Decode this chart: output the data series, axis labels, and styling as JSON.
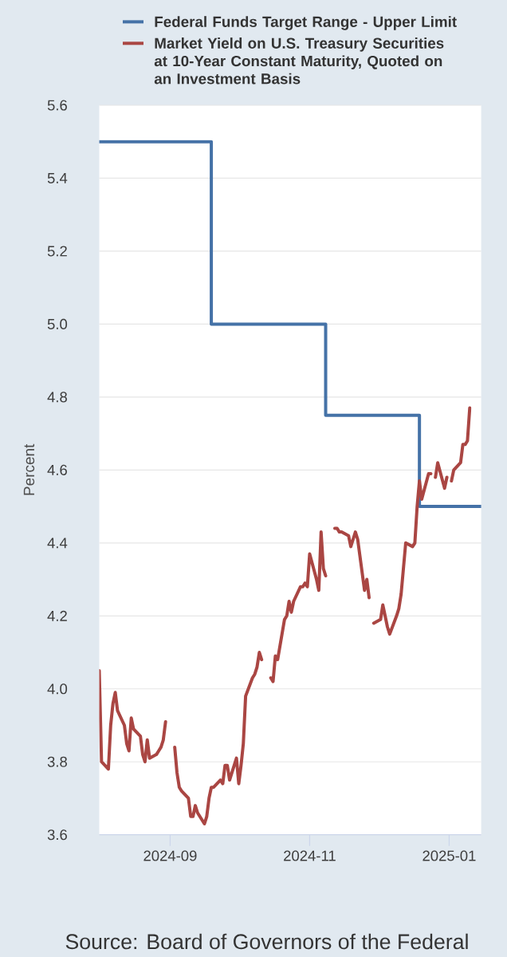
{
  "chart_data": {
    "type": "line",
    "ylabel": "Percent",
    "annotations": [
      "Source: Board of Governors of the Federal"
    ],
    "xlim": [
      "2024-08-01",
      "2025-01-15"
    ],
    "xticks": [
      "2024-09",
      "2024-11",
      "2025-01"
    ],
    "ylim": [
      3.6,
      5.6
    ],
    "yticks": [
      3.6,
      3.8,
      {
        "value": 4,
        "label": "4.0"
      },
      4.2,
      4.4,
      4.6,
      4.8,
      {
        "value": 5,
        "label": "5.0"
      },
      5.2,
      5.4,
      5.6
    ],
    "grid": "y",
    "legend": "top",
    "series": [
      {
        "name": "Federal Funds Target Range - Upper Limit",
        "type": "step",
        "color": "#4572a7",
        "x": [
          "2024-08-01",
          "2024-09-19",
          "2024-11-08",
          "2024-12-19",
          "2025-01-15"
        ],
        "values": [
          5.5,
          5.0,
          4.75,
          4.5,
          4.5
        ]
      },
      {
        "name": "Market Yield on U.S. Treasury Securities at 10-Year Constant Maturity, Quoted on an Investment Basis",
        "color": "#aa4643",
        "x": [
          "2024-08-01",
          "2024-08-02",
          "2024-08-05",
          "2024-08-06",
          "2024-08-07",
          "2024-08-08",
          "2024-08-09",
          "2024-08-12",
          "2024-08-13",
          "2024-08-14",
          "2024-08-15",
          "2024-08-16",
          "2024-08-19",
          "2024-08-20",
          "2024-08-21",
          "2024-08-22",
          "2024-08-23",
          "2024-08-26",
          "2024-08-27",
          "2024-08-28",
          "2024-08-29",
          "2024-08-30",
          "2024-09-02",
          "2024-09-03",
          "2024-09-04",
          "2024-09-05",
          "2024-09-06",
          "2024-09-09",
          "2024-09-10",
          "2024-09-11",
          "2024-09-12",
          "2024-09-13",
          "2024-09-16",
          "2024-09-17",
          "2024-09-18",
          "2024-09-19",
          "2024-09-20",
          "2024-09-23",
          "2024-09-24",
          "2024-09-25",
          "2024-09-26",
          "2024-09-27",
          "2024-09-30",
          "2024-10-01",
          "2024-10-02",
          "2024-10-03",
          "2024-10-04",
          "2024-10-07",
          "2024-10-08",
          "2024-10-09",
          "2024-10-10",
          "2024-10-11",
          "2024-10-14",
          "2024-10-15",
          "2024-10-16",
          "2024-10-17",
          "2024-10-18",
          "2024-10-21",
          "2024-10-22",
          "2024-10-23",
          "2024-10-24",
          "2024-10-25",
          "2024-10-28",
          "2024-10-29",
          "2024-10-30",
          "2024-10-31",
          "2024-11-01",
          "2024-11-04",
          "2024-11-05",
          "2024-11-06",
          "2024-11-07",
          "2024-11-08",
          "2024-11-11",
          "2024-11-12",
          "2024-11-13",
          "2024-11-14",
          "2024-11-15",
          "2024-11-18",
          "2024-11-19",
          "2024-11-20",
          "2024-11-21",
          "2024-11-22",
          "2024-11-25",
          "2024-11-26",
          "2024-11-27",
          "2024-11-28",
          "2024-11-29",
          "2024-12-02",
          "2024-12-03",
          "2024-12-04",
          "2024-12-05",
          "2024-12-06",
          "2024-12-09",
          "2024-12-10",
          "2024-12-11",
          "2024-12-12",
          "2024-12-13",
          "2024-12-16",
          "2024-12-17",
          "2024-12-18",
          "2024-12-19",
          "2024-12-20",
          "2024-12-23",
          "2024-12-24",
          "2024-12-25",
          "2024-12-26",
          "2024-12-27",
          "2024-12-30",
          "2024-12-31",
          "2025-01-01",
          "2025-01-02",
          "2025-01-03",
          "2025-01-06",
          "2025-01-07",
          "2025-01-08",
          "2025-01-09",
          "2025-01-10"
        ],
        "values": [
          4.05,
          3.8,
          3.78,
          3.9,
          3.96,
          3.99,
          3.94,
          3.9,
          3.85,
          3.83,
          3.92,
          3.89,
          3.87,
          3.82,
          3.8,
          3.86,
          3.81,
          3.82,
          3.83,
          3.84,
          3.86,
          3.91,
          null,
          3.84,
          3.77,
          3.73,
          3.72,
          3.7,
          3.65,
          3.65,
          3.68,
          3.66,
          3.63,
          3.65,
          3.7,
          3.73,
          3.73,
          3.75,
          3.74,
          3.79,
          3.79,
          3.75,
          3.81,
          3.74,
          3.79,
          3.85,
          3.98,
          4.03,
          4.04,
          4.06,
          4.1,
          4.08,
          null,
          4.03,
          4.02,
          4.09,
          4.08,
          4.19,
          4.2,
          4.24,
          4.21,
          4.24,
          4.28,
          4.28,
          4.29,
          4.28,
          4.37,
          4.3,
          4.27,
          4.43,
          4.33,
          4.31,
          null,
          4.44,
          4.44,
          4.43,
          4.43,
          4.42,
          4.39,
          4.41,
          4.43,
          4.41,
          4.27,
          4.3,
          4.25,
          null,
          4.18,
          4.19,
          4.23,
          4.2,
          4.17,
          4.15,
          4.2,
          4.22,
          4.26,
          4.33,
          4.4,
          4.39,
          4.4,
          4.5,
          4.57,
          4.52,
          4.59,
          4.59,
          null,
          4.58,
          4.62,
          4.55,
          4.58,
          null,
          4.57,
          4.6,
          4.62,
          4.67,
          4.67,
          4.68,
          4.77
        ]
      }
    ]
  }
}
